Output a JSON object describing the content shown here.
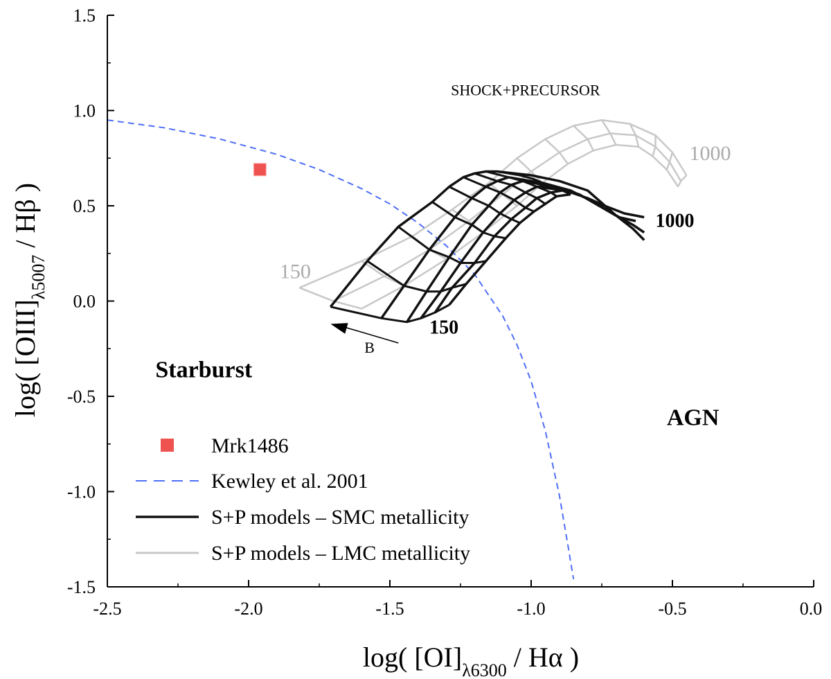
{
  "chart_data": {
    "type": "scatter",
    "xlabel": {
      "pre": "log( [OI]",
      "sub": "λ6300",
      "post": " / Hα )"
    },
    "ylabel": {
      "pre": "log( [OIII]",
      "sub": "λ5007",
      "post": " / Hβ )"
    },
    "xlim": [
      -2.5,
      0.0
    ],
    "ylim": [
      -1.5,
      1.5
    ],
    "xticks": [
      -2.5,
      -2.0,
      -1.5,
      -1.0,
      -0.5,
      0.0
    ],
    "yticks": [
      -1.5,
      -1.0,
      -0.5,
      0.0,
      0.5,
      1.0,
      1.5
    ],
    "xtick_labels": [
      "-2.5",
      "-2.0",
      "-1.5",
      "-1.0",
      "-0.5",
      "0.0"
    ],
    "ytick_labels": [
      "-1.5",
      "-1.0",
      "-0.5",
      "0.0",
      "0.5",
      "1.0",
      "1.5"
    ],
    "colors": {
      "point": "#ef5350",
      "kewley": "#4f6ef7",
      "smc": "#111111",
      "lmc": "#c8c8c8",
      "axis": "#000000"
    },
    "points": [
      {
        "name": "Mrk1486",
        "x": -1.96,
        "y": 0.69
      }
    ],
    "kewley_curve": {
      "name": "Kewley et al. 2001",
      "x": [
        -2.5,
        -2.3,
        -2.1,
        -1.9,
        -1.75,
        -1.6,
        -1.5,
        -1.4,
        -1.3,
        -1.2,
        -1.1,
        -1.05,
        -1.0,
        -0.95,
        -0.9,
        -0.87,
        -0.85
      ],
      "y": [
        0.95,
        0.91,
        0.85,
        0.77,
        0.69,
        0.59,
        0.51,
        0.41,
        0.29,
        0.14,
        -0.08,
        -0.23,
        -0.42,
        -0.68,
        -1.02,
        -1.28,
        -1.46
      ]
    },
    "smc_grid": {
      "name": "S+P models – SMC metallicity",
      "v_lines": [
        {
          "x": [
            -1.71,
            -1.58,
            -1.47,
            -1.35,
            -1.29,
            -1.24,
            -1.2,
            -1.16,
            -1.12
          ],
          "y": [
            -0.03,
            0.21,
            0.39,
            0.52,
            0.6,
            0.65,
            0.67,
            0.68,
            0.68
          ]
        },
        {
          "x": [
            -1.53,
            -1.45,
            -1.36,
            -1.27,
            -1.21,
            -1.16,
            -1.12,
            -1.08
          ],
          "y": [
            -0.09,
            0.08,
            0.27,
            0.44,
            0.54,
            0.6,
            0.63,
            0.65
          ]
        },
        {
          "x": [
            -1.44,
            -1.37,
            -1.29,
            -1.21,
            -1.15,
            -1.11,
            -1.07,
            -1.03
          ],
          "y": [
            -0.11,
            0.05,
            0.23,
            0.4,
            0.5,
            0.57,
            0.61,
            0.63
          ]
        },
        {
          "x": [
            -1.39,
            -1.32,
            -1.25,
            -1.17,
            -1.11,
            -1.06,
            -1.02,
            -0.98,
            -0.93
          ],
          "y": [
            -0.09,
            0.05,
            0.2,
            0.36,
            0.46,
            0.53,
            0.57,
            0.6,
            0.6
          ]
        },
        {
          "x": [
            -1.34,
            -1.28,
            -1.2,
            -1.13,
            -1.07,
            -1.02,
            -0.98,
            -0.93,
            -0.89
          ],
          "y": [
            -0.06,
            0.07,
            0.2,
            0.34,
            0.43,
            0.49,
            0.54,
            0.57,
            0.58
          ]
        },
        {
          "x": [
            -1.29,
            -1.23,
            -1.16,
            -1.09,
            -1.04,
            -0.99,
            -0.95,
            -0.91,
            -0.86
          ],
          "y": [
            -0.02,
            0.09,
            0.21,
            0.33,
            0.41,
            0.47,
            0.51,
            0.55,
            0.56
          ]
        }
      ],
      "h_lines": [
        {
          "x": [
            -1.71,
            -1.53,
            -1.44,
            -1.39,
            -1.34,
            -1.29
          ],
          "y": [
            -0.03,
            -0.09,
            -0.11,
            -0.09,
            -0.06,
            -0.02
          ]
        },
        {
          "x": [
            -1.58,
            -1.45,
            -1.37,
            -1.32,
            -1.28,
            -1.23
          ],
          "y": [
            0.21,
            0.08,
            0.05,
            0.05,
            0.07,
            0.09
          ]
        },
        {
          "x": [
            -1.47,
            -1.36,
            -1.29,
            -1.25,
            -1.2,
            -1.16
          ],
          "y": [
            0.39,
            0.27,
            0.23,
            0.2,
            0.2,
            0.21
          ]
        },
        {
          "x": [
            -1.35,
            -1.27,
            -1.21,
            -1.17,
            -1.13,
            -1.09
          ],
          "y": [
            0.52,
            0.44,
            0.4,
            0.36,
            0.34,
            0.33
          ]
        },
        {
          "x": [
            -1.29,
            -1.21,
            -1.15,
            -1.11,
            -1.07,
            -1.04
          ],
          "y": [
            0.6,
            0.54,
            0.5,
            0.46,
            0.43,
            0.41
          ]
        },
        {
          "x": [
            -1.24,
            -1.16,
            -1.11,
            -1.06,
            -1.02,
            -0.99
          ],
          "y": [
            0.65,
            0.6,
            0.57,
            0.53,
            0.49,
            0.47
          ]
        },
        {
          "x": [
            -1.2,
            -1.12,
            -1.07,
            -1.02,
            -0.98,
            -0.95
          ],
          "y": [
            0.67,
            0.63,
            0.61,
            0.57,
            0.54,
            0.51
          ]
        },
        {
          "x": [
            -1.16,
            -1.08,
            -1.03,
            -0.98,
            -0.93,
            -0.91
          ],
          "y": [
            0.68,
            0.65,
            0.63,
            0.6,
            0.57,
            0.55
          ]
        },
        {
          "x": [
            -1.12,
            -1.04,
            -0.99,
            -0.93,
            -0.89,
            -0.86
          ],
          "y": [
            0.68,
            0.66,
            0.64,
            0.6,
            0.58,
            0.56
          ]
        }
      ],
      "tails": [
        {
          "x": [
            -1.12,
            -1.0,
            -0.9,
            -0.8,
            -0.7,
            -0.64,
            -0.6
          ],
          "y": [
            0.68,
            0.66,
            0.63,
            0.58,
            0.45,
            0.38,
            0.32
          ]
        },
        {
          "x": [
            -1.08,
            -0.96,
            -0.86,
            -0.78,
            -0.7,
            -0.64,
            -0.6
          ],
          "y": [
            0.65,
            0.62,
            0.58,
            0.52,
            0.45,
            0.4,
            0.36
          ]
        },
        {
          "x": [
            -1.03,
            -0.92,
            -0.83,
            -0.76,
            -0.69,
            -0.63
          ],
          "y": [
            0.63,
            0.6,
            0.56,
            0.5,
            0.44,
            0.42
          ]
        },
        {
          "x": [
            -0.98,
            -0.88,
            -0.8,
            -0.74,
            -0.67,
            -0.6
          ],
          "y": [
            0.6,
            0.58,
            0.54,
            0.5,
            0.46,
            0.44
          ]
        }
      ]
    },
    "lmc_grid": {
      "name": "S+P models – LMC metallicity",
      "v_lines": [
        {
          "x": [
            -1.82,
            -1.6,
            -1.42,
            -1.28,
            -1.15,
            -1.05,
            -0.95,
            -0.85,
            -0.75,
            -0.65,
            -0.56,
            -0.5,
            -0.45
          ],
          "y": [
            0.07,
            0.21,
            0.34,
            0.48,
            0.62,
            0.75,
            0.85,
            0.92,
            0.95,
            0.93,
            0.87,
            0.78,
            0.66
          ]
        },
        {
          "x": [
            -1.7,
            -1.52,
            -1.36,
            -1.22,
            -1.1,
            -1.0,
            -0.9,
            -0.8,
            -0.72,
            -0.63,
            -0.56,
            -0.51,
            -0.47
          ],
          "y": [
            0.0,
            0.13,
            0.27,
            0.42,
            0.56,
            0.68,
            0.78,
            0.85,
            0.88,
            0.87,
            0.81,
            0.73,
            0.63
          ]
        },
        {
          "x": [
            -1.6,
            -1.45,
            -1.3,
            -1.17,
            -1.05,
            -0.96,
            -0.87,
            -0.78,
            -0.7,
            -0.62,
            -0.57,
            -0.52,
            -0.48
          ],
          "y": [
            -0.04,
            0.08,
            0.22,
            0.36,
            0.5,
            0.62,
            0.72,
            0.79,
            0.82,
            0.81,
            0.76,
            0.69,
            0.6
          ]
        }
      ],
      "h_lines": [
        {
          "x": [
            -1.82,
            -1.7,
            -1.6
          ],
          "y": [
            0.07,
            0.0,
            -0.04
          ]
        },
        {
          "x": [
            -1.6,
            -1.52,
            -1.45
          ],
          "y": [
            0.21,
            0.13,
            0.08
          ]
        },
        {
          "x": [
            -1.42,
            -1.36,
            -1.3
          ],
          "y": [
            0.34,
            0.27,
            0.22
          ]
        },
        {
          "x": [
            -1.28,
            -1.22,
            -1.17
          ],
          "y": [
            0.48,
            0.42,
            0.36
          ]
        },
        {
          "x": [
            -1.15,
            -1.1,
            -1.05
          ],
          "y": [
            0.62,
            0.56,
            0.5
          ]
        },
        {
          "x": [
            -1.05,
            -1.0,
            -0.96
          ],
          "y": [
            0.75,
            0.68,
            0.62
          ]
        },
        {
          "x": [
            -0.95,
            -0.9,
            -0.87
          ],
          "y": [
            0.85,
            0.78,
            0.72
          ]
        },
        {
          "x": [
            -0.85,
            -0.8,
            -0.78
          ],
          "y": [
            0.92,
            0.85,
            0.79
          ]
        },
        {
          "x": [
            -0.75,
            -0.72,
            -0.7
          ],
          "y": [
            0.95,
            0.88,
            0.82
          ]
        },
        {
          "x": [
            -0.65,
            -0.63,
            -0.62
          ],
          "y": [
            0.93,
            0.87,
            0.81
          ]
        },
        {
          "x": [
            -0.56,
            -0.56,
            -0.57
          ],
          "y": [
            0.87,
            0.81,
            0.76
          ]
        },
        {
          "x": [
            -0.5,
            -0.51,
            -0.52
          ],
          "y": [
            0.78,
            0.73,
            0.69
          ]
        },
        {
          "x": [
            -0.45,
            -0.47,
            -0.48
          ],
          "y": [
            0.66,
            0.63,
            0.6
          ]
        }
      ]
    },
    "annotations": {
      "shock_precursor": {
        "text": "SHOCK+PRECURSOR",
        "x": -1.02,
        "y": 1.08
      },
      "lmc_1000": {
        "text": "1000",
        "x": -0.44,
        "y": 0.74
      },
      "smc_1000": {
        "text": "1000",
        "x": -0.56,
        "y": 0.39
      },
      "lmc_150": {
        "text": "150",
        "x": -1.89,
        "y": 0.12
      },
      "smc_150": {
        "text": "150",
        "x": -1.36,
        "y": -0.17
      },
      "arrow_b": {
        "text": "B",
        "x": -1.59,
        "y": -0.27,
        "from": [
          -1.47,
          -0.22
        ],
        "to": [
          -1.71,
          -0.12
        ]
      },
      "starburst": {
        "text": "Starburst",
        "x": -2.33,
        "y": -0.4
      },
      "agn": {
        "text": "AGN",
        "x": -0.52,
        "y": -0.65
      }
    },
    "legend": [
      {
        "kind": "marker",
        "label": "Mrk1486"
      },
      {
        "kind": "dashed",
        "label": "Kewley et al. 2001"
      },
      {
        "kind": "line_smc",
        "label": "S+P models – SMC metallicity"
      },
      {
        "kind": "line_lmc",
        "label": "S+P models – LMC metallicity"
      }
    ],
    "legend_position": "bottom-left"
  }
}
